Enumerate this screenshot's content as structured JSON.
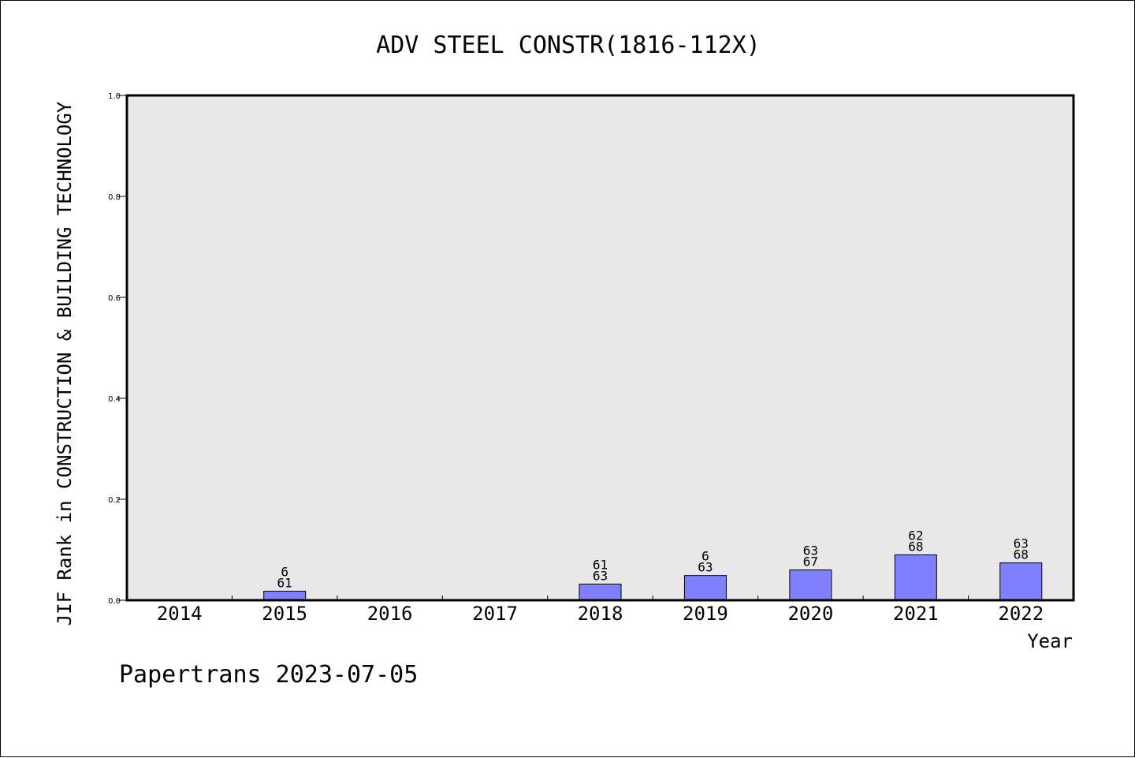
{
  "chart_data": {
    "type": "bar",
    "title": "ADV STEEL CONSTR(1816-112X)",
    "ylabel": "JIF Rank in CONSTRUCTION & BUILDING TECHNOLOGY",
    "xlabel": "Year",
    "ylim": [
      0,
      1.0
    ],
    "yticks": [
      "0.0",
      "0.2",
      "0.4",
      "0.6",
      "0.8",
      "1.0"
    ],
    "grid": false,
    "categories": [
      "2014",
      "2015",
      "2016",
      "2017",
      "2018",
      "2019",
      "2020",
      "2021",
      "2022"
    ],
    "values": [
      0,
      0.018,
      0,
      0,
      0.032,
      0.049,
      0.06,
      0.09,
      0.074
    ],
    "labels": [
      null,
      [
        "6",
        "61"
      ],
      null,
      null,
      [
        "61",
        "63"
      ],
      [
        "6",
        "63"
      ],
      [
        "63",
        "67"
      ],
      [
        "62",
        "68"
      ],
      [
        "63",
        "68"
      ]
    ],
    "colors": {
      "bar": "#8080ff",
      "plot_bg": "#e8e8e8",
      "border": "#000000"
    }
  },
  "footer": "Papertrans 2023-07-05"
}
